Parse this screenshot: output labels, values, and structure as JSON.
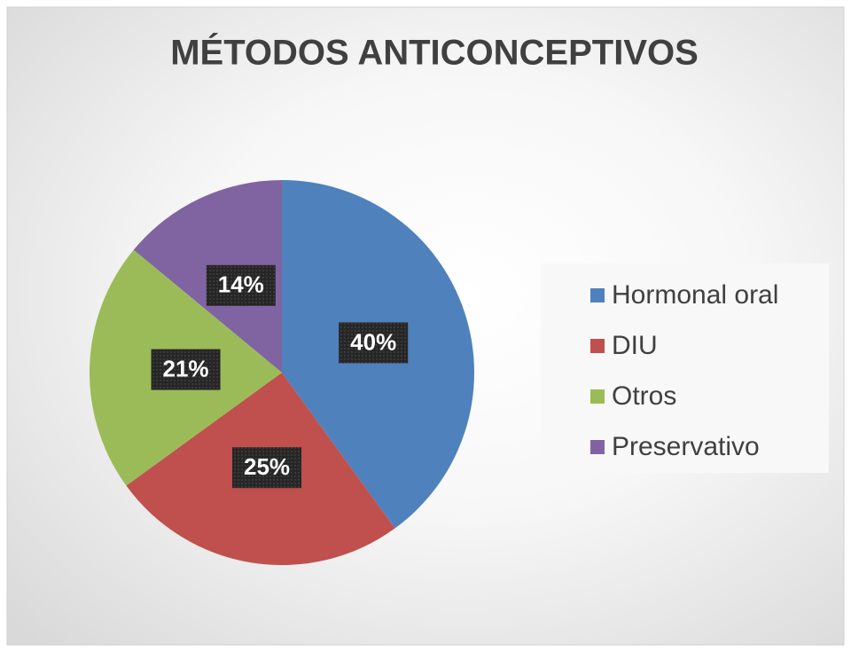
{
  "chart_data": {
    "type": "pie",
    "title": "MÉTODOS ANTICONCEPTIVOS",
    "categories": [
      "Hormonal oral",
      "DIU",
      "Otros",
      "Preservativo"
    ],
    "values": [
      40,
      25,
      21,
      14
    ],
    "value_labels": [
      "40%",
      "25%",
      "21%",
      "14%"
    ],
    "colors": [
      "#4f81bd",
      "#c0504d",
      "#9bbb59",
      "#8064a2"
    ],
    "legend": "right"
  }
}
